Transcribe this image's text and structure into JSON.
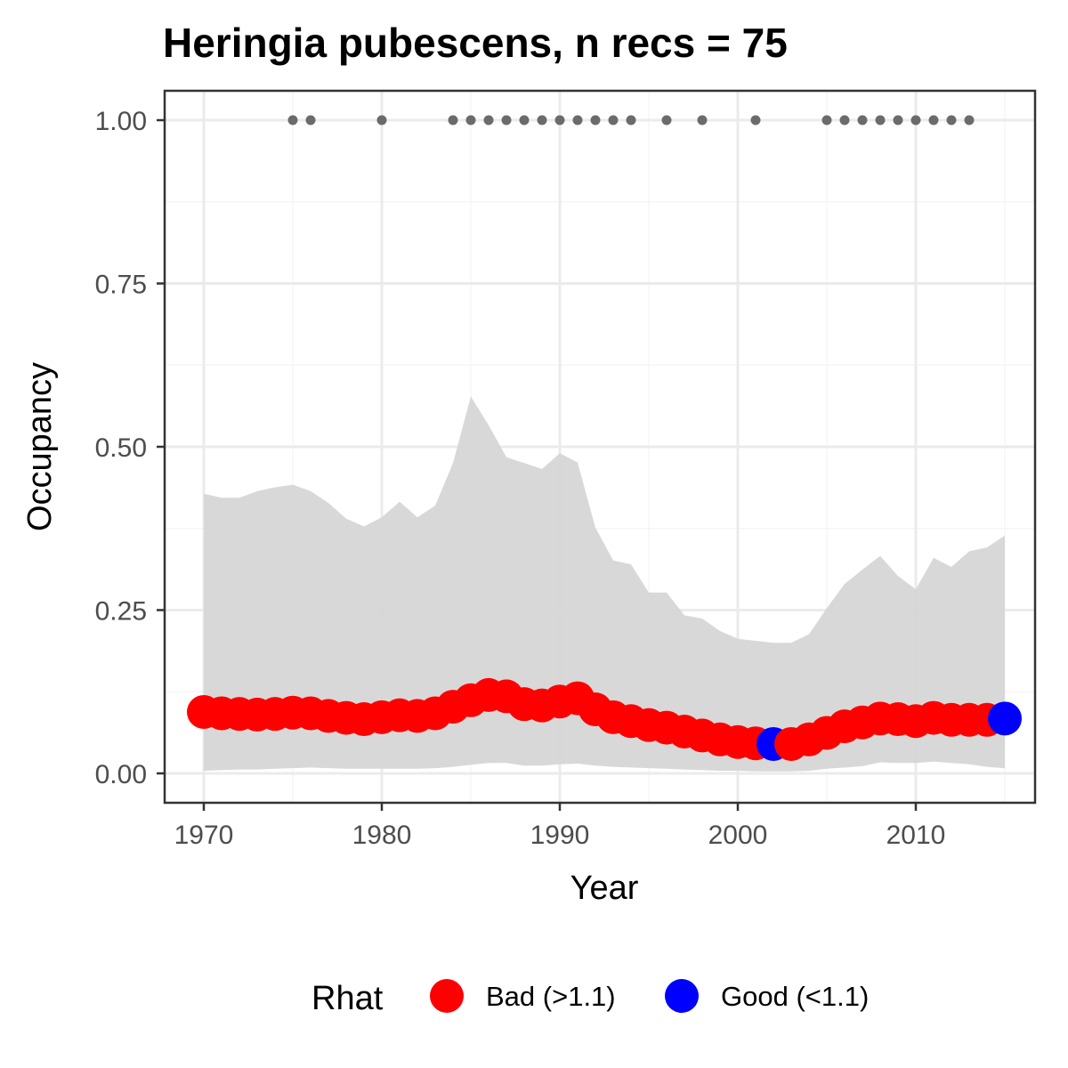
{
  "chart_data": {
    "type": "line",
    "title": "Heringia pubescens, n recs = 75",
    "xlabel": "Year",
    "ylabel": "Occupancy",
    "xlim": [
      1967.8,
      1981.9
    ],
    "x_range": [
      1967.8,
      2016.7
    ],
    "ylim": [
      -0.045,
      1.045
    ],
    "x_ticks": [
      1970,
      1980,
      1990,
      2000,
      2010
    ],
    "x_tick_labels": [
      "1970",
      "1980",
      "1990",
      "2000",
      "2010"
    ],
    "y_ticks": [
      0,
      0.25,
      0.5,
      0.75,
      1.0
    ],
    "y_tick_labels": [
      "0.00",
      "0.25",
      "0.50",
      "0.75",
      "1.00"
    ],
    "grid": true,
    "legend": {
      "title": "Rhat",
      "position": "bottom",
      "entries": [
        {
          "label": "Bad (>1.1)",
          "color": "#ff0000"
        },
        {
          "label": "Good (<1.1)",
          "color": "#0000ff"
        }
      ]
    },
    "colors": {
      "bad": "#ff0000",
      "good": "#0000ff",
      "ribbon": "#d6d6d6",
      "records": "#6b6b6b",
      "panel_border": "#333333",
      "grid_major": "#ebebeb",
      "grid_minor": "#f5f5f5"
    },
    "occupancy": {
      "years": [
        1970,
        1971,
        1972,
        1973,
        1974,
        1975,
        1976,
        1977,
        1978,
        1979,
        1980,
        1981,
        1982,
        1983,
        1984,
        1985,
        1986,
        1987,
        1988,
        1989,
        1990,
        1991,
        1992,
        1993,
        1994,
        1995,
        1996,
        1997,
        1998,
        1999,
        2000,
        2001,
        2002,
        2003,
        2004,
        2005,
        2006,
        2007,
        2008,
        2009,
        2010,
        2011,
        2012,
        2013,
        2014,
        2015
      ],
      "mean": [
        0.094,
        0.092,
        0.091,
        0.09,
        0.091,
        0.093,
        0.092,
        0.088,
        0.085,
        0.083,
        0.086,
        0.089,
        0.088,
        0.092,
        0.102,
        0.112,
        0.12,
        0.118,
        0.106,
        0.104,
        0.11,
        0.115,
        0.098,
        0.086,
        0.08,
        0.074,
        0.07,
        0.064,
        0.058,
        0.052,
        0.048,
        0.046,
        0.045,
        0.045,
        0.052,
        0.062,
        0.072,
        0.078,
        0.084,
        0.083,
        0.08,
        0.085,
        0.082,
        0.082,
        0.082,
        0.084
      ],
      "lower": [
        0.004,
        0.005,
        0.006,
        0.006,
        0.007,
        0.008,
        0.009,
        0.008,
        0.007,
        0.007,
        0.007,
        0.007,
        0.007,
        0.008,
        0.01,
        0.013,
        0.016,
        0.016,
        0.012,
        0.012,
        0.014,
        0.015,
        0.012,
        0.01,
        0.009,
        0.008,
        0.007,
        0.006,
        0.005,
        0.004,
        0.004,
        0.003,
        0.003,
        0.003,
        0.004,
        0.007,
        0.009,
        0.011,
        0.017,
        0.016,
        0.016,
        0.018,
        0.016,
        0.014,
        0.01,
        0.008
      ],
      "upper": [
        0.428,
        0.422,
        0.422,
        0.432,
        0.438,
        0.442,
        0.432,
        0.414,
        0.39,
        0.378,
        0.392,
        0.416,
        0.392,
        0.41,
        0.475,
        0.577,
        0.533,
        0.484,
        0.475,
        0.466,
        0.49,
        0.476,
        0.376,
        0.326,
        0.32,
        0.277,
        0.277,
        0.242,
        0.237,
        0.218,
        0.206,
        0.203,
        0.2,
        0.2,
        0.213,
        0.253,
        0.29,
        0.312,
        0.333,
        0.302,
        0.282,
        0.33,
        0.316,
        0.34,
        0.346,
        0.364
      ],
      "rhat": [
        "bad",
        "bad",
        "bad",
        "bad",
        "bad",
        "bad",
        "bad",
        "bad",
        "bad",
        "bad",
        "bad",
        "bad",
        "bad",
        "bad",
        "bad",
        "bad",
        "bad",
        "bad",
        "bad",
        "bad",
        "bad",
        "bad",
        "bad",
        "bad",
        "bad",
        "bad",
        "bad",
        "bad",
        "bad",
        "bad",
        "bad",
        "bad",
        "good",
        "bad",
        "bad",
        "bad",
        "bad",
        "bad",
        "bad",
        "bad",
        "bad",
        "bad",
        "bad",
        "bad",
        "bad",
        "good"
      ]
    },
    "record_years": [
      1975,
      1976,
      1980,
      1984,
      1985,
      1986,
      1987,
      1988,
      1989,
      1990,
      1991,
      1992,
      1993,
      1994,
      1996,
      1998,
      2001,
      2005,
      2006,
      2007,
      2008,
      2009,
      2010,
      2011,
      2012,
      2013
    ],
    "record_value": 1.0
  }
}
